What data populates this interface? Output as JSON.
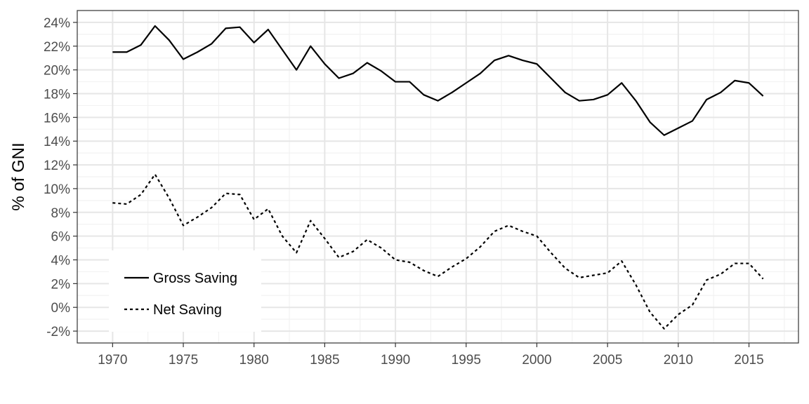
{
  "chart_data": {
    "type": "line",
    "title": "",
    "xlabel": "",
    "ylabel": "% of GNI",
    "xlim": [
      1967.5,
      2018.5
    ],
    "ylim": [
      -3,
      25
    ],
    "x_ticks": [
      1970,
      1975,
      1980,
      1985,
      1990,
      1995,
      2000,
      2005,
      2010,
      2015
    ],
    "y_ticks": [
      -2,
      0,
      2,
      4,
      6,
      8,
      10,
      12,
      14,
      16,
      18,
      20,
      22,
      24
    ],
    "y_tick_labels": [
      "-2%",
      "0%",
      "2%",
      "4%",
      "6%",
      "8%",
      "10%",
      "12%",
      "14%",
      "16%",
      "18%",
      "20%",
      "22%",
      "24%"
    ],
    "grid": true,
    "legend_position": "bottom-left",
    "x": [
      1970,
      1971,
      1972,
      1973,
      1974,
      1975,
      1976,
      1977,
      1978,
      1979,
      1980,
      1981,
      1982,
      1983,
      1984,
      1985,
      1986,
      1987,
      1988,
      1989,
      1990,
      1991,
      1992,
      1993,
      1994,
      1995,
      1996,
      1997,
      1998,
      1999,
      2000,
      2001,
      2002,
      2003,
      2004,
      2005,
      2006,
      2007,
      2008,
      2009,
      2010,
      2011,
      2012,
      2013,
      2014,
      2015,
      2016
    ],
    "series": [
      {
        "name": "Gross Saving",
        "line_style": "solid",
        "color": "#000000",
        "values": [
          21.5,
          21.5,
          22.1,
          23.7,
          22.5,
          20.9,
          21.5,
          22.2,
          23.5,
          23.6,
          22.3,
          23.4,
          21.7,
          20.0,
          22.0,
          20.5,
          19.3,
          19.7,
          20.6,
          19.9,
          19.0,
          19.0,
          17.9,
          17.4,
          18.1,
          18.9,
          19.7,
          20.8,
          21.2,
          20.8,
          20.5,
          19.3,
          18.1,
          17.4,
          17.5,
          17.9,
          18.9,
          17.4,
          15.6,
          14.5,
          15.1,
          15.7,
          17.5,
          18.1,
          19.1,
          18.9,
          17.8
        ]
      },
      {
        "name": "Net Saving",
        "line_style": "dashed",
        "color": "#000000",
        "values": [
          8.8,
          8.7,
          9.5,
          11.2,
          9.2,
          6.9,
          7.6,
          8.4,
          9.6,
          9.5,
          7.4,
          8.3,
          6.0,
          4.6,
          7.3,
          5.8,
          4.2,
          4.7,
          5.7,
          5.0,
          4.0,
          3.8,
          3.1,
          2.6,
          3.4,
          4.1,
          5.1,
          6.4,
          6.9,
          6.4,
          6.0,
          4.6,
          3.3,
          2.5,
          2.7,
          2.9,
          3.9,
          1.9,
          -0.4,
          -1.8,
          -0.6,
          0.2,
          2.3,
          2.8,
          3.7,
          3.7,
          2.4
        ]
      }
    ]
  }
}
